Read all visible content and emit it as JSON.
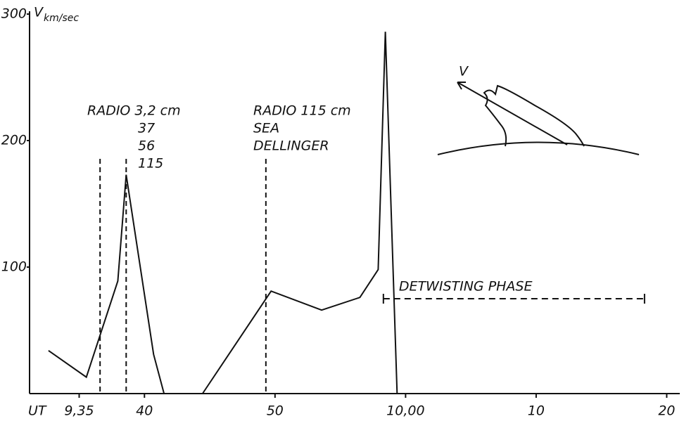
{
  "chart_data": {
    "type": "line",
    "ylabel": "V",
    "ylabel_sub": "km/sec",
    "xlabel": "UT",
    "x": [
      32.65,
      35.55,
      37.96,
      38.6,
      40.7,
      41.5,
      43,
      44.45,
      49.7,
      53.57,
      56.5,
      57.9,
      58.45,
      59.35
    ],
    "series": [
      {
        "color": "#111111",
        "values": [
          34,
          13,
          89,
          173,
          31,
          0,
          null,
          0,
          81,
          66,
          76,
          98,
          286,
          0
        ]
      }
    ],
    "xlim": [
      31.2,
      81
    ],
    "ylim": [
      0,
      300
    ],
    "xticks": [
      {
        "value": 35,
        "label": "9,35"
      },
      40,
      50,
      {
        "value": 60,
        "label": "10,00"
      },
      {
        "value": 70,
        "label": "10"
      },
      {
        "value": 80,
        "label": "20"
      }
    ],
    "yticks": [
      100,
      200,
      300
    ],
    "event_lines": [
      36.6,
      38.6,
      49.3
    ],
    "annotations": {
      "radio1": [
        "RADIO 3,2 cm",
        "37",
        "56",
        "115"
      ],
      "radio2": [
        "RADIO 115 cm",
        "SEA",
        "DELLINGER"
      ],
      "inset_label": "V"
    },
    "phase": {
      "label": "DETWISTING PHASE",
      "start": 58.3,
      "end": 78.3,
      "level": 75
    }
  }
}
